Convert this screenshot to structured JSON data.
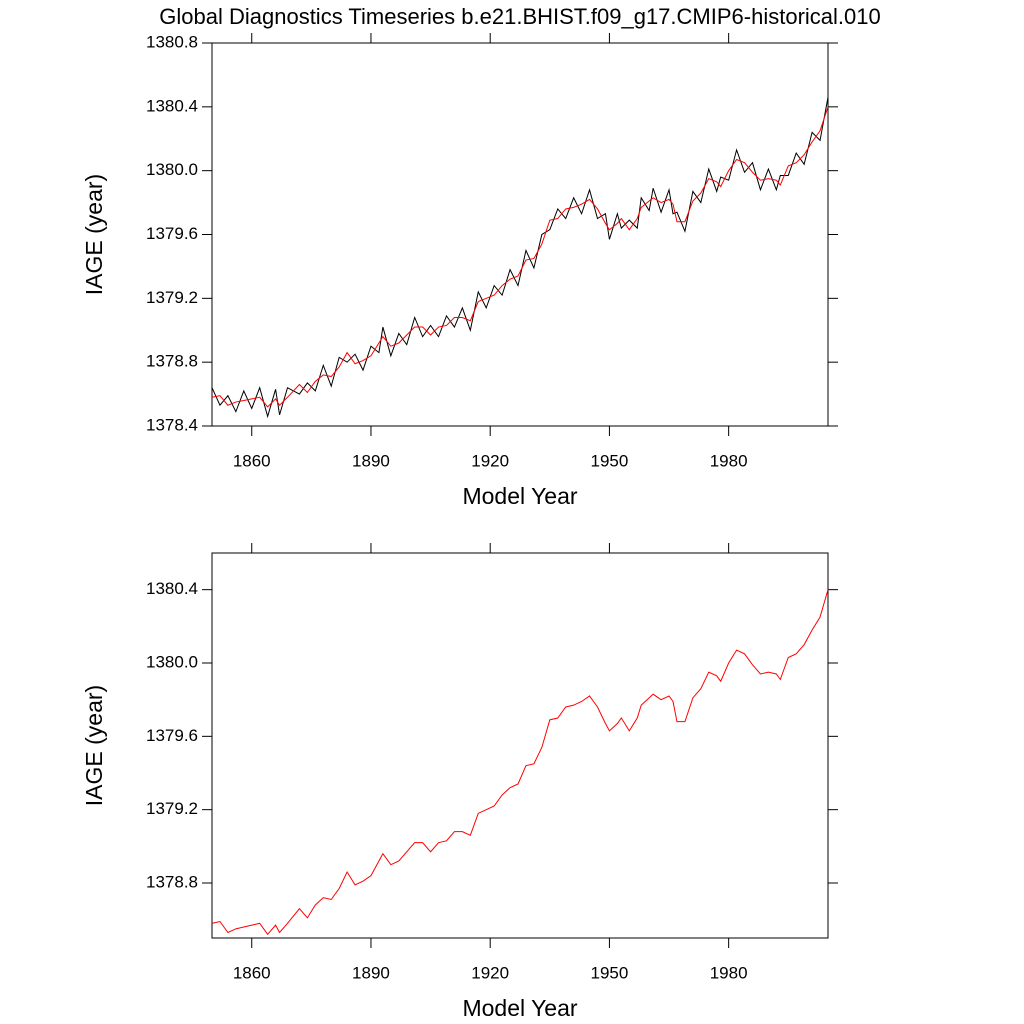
{
  "chart_data": [
    {
      "type": "line",
      "title": "Global Diagnostics Timeseries b.e21.BHIST.f09_g17.CMIP6-historical.010",
      "x_label": "Model Year",
      "y_label": "IAGE (year)",
      "xlim": [
        1850,
        2005
      ],
      "xticks": [
        1860,
        1890,
        1920,
        1950,
        1980
      ],
      "ylim": [
        1378.4,
        1380.8
      ],
      "yticks": [
        1378.4,
        1378.8,
        1379.2,
        1379.6,
        {
          "value": 1380,
          "label": "1380.0"
        },
        1380.4,
        1380.8
      ],
      "x": [
        1850,
        1852,
        1854,
        1856,
        1858,
        1860,
        1862,
        1864,
        1866,
        1867,
        1869,
        1872,
        1874,
        1876,
        1878,
        1880,
        1882,
        1884,
        1886,
        1888,
        1890,
        1892,
        1893,
        1895,
        1897,
        1899,
        1901,
        1903,
        1905,
        1907,
        1909,
        1911,
        1913,
        1915,
        1917,
        1919,
        1921,
        1923,
        1925,
        1927,
        1929,
        1931,
        1933,
        1935,
        1937,
        1939,
        1941,
        1943,
        1945,
        1947,
        1949,
        1950,
        1952,
        1953,
        1955,
        1957,
        1958,
        1960,
        1961,
        1963,
        1965,
        1966,
        1967,
        1969,
        1971,
        1973,
        1975,
        1977,
        1978,
        1980,
        1982,
        1984,
        1986,
        1988,
        1990,
        1992,
        1993,
        1995,
        1997,
        1999,
        2001,
        2003,
        2005
      ],
      "series": [
        {
          "color": "#000000",
          "values": [
            1378.64,
            1378.53,
            1378.59,
            1378.49,
            1378.62,
            1378.51,
            1378.64,
            1378.46,
            1378.63,
            1378.47,
            1378.64,
            1378.6,
            1378.67,
            1378.62,
            1378.78,
            1378.65,
            1378.83,
            1378.8,
            1378.85,
            1378.75,
            1378.9,
            1378.86,
            1379.02,
            1378.84,
            1378.98,
            1378.91,
            1379.08,
            1378.96,
            1379.03,
            1378.96,
            1379.09,
            1379.02,
            1379.14,
            1379.0,
            1379.24,
            1379.14,
            1379.28,
            1379.22,
            1379.38,
            1379.28,
            1379.5,
            1379.39,
            1379.6,
            1379.63,
            1379.76,
            1379.7,
            1379.83,
            1379.73,
            1379.88,
            1379.7,
            1379.73,
            1379.57,
            1379.73,
            1379.64,
            1379.69,
            1379.64,
            1379.83,
            1379.75,
            1379.89,
            1379.74,
            1379.88,
            1379.73,
            1379.74,
            1379.62,
            1379.87,
            1379.8,
            1380.01,
            1379.87,
            1379.96,
            1379.94,
            1380.13,
            1379.99,
            1380.05,
            1379.88,
            1380.01,
            1379.88,
            1379.97,
            1379.97,
            1380.11,
            1380.04,
            1380.24,
            1380.19,
            1380.46
          ]
        },
        {
          "color": "#ff0000",
          "values": [
            1378.58,
            1378.59,
            1378.53,
            1378.55,
            1378.56,
            1378.57,
            1378.58,
            1378.52,
            1378.57,
            1378.53,
            1378.58,
            1378.66,
            1378.61,
            1378.68,
            1378.72,
            1378.71,
            1378.77,
            1378.86,
            1378.79,
            1378.81,
            1378.84,
            1378.92,
            1378.96,
            1378.9,
            1378.92,
            1378.97,
            1379.02,
            1379.02,
            1378.97,
            1379.02,
            1379.03,
            1379.08,
            1379.08,
            1379.06,
            1379.18,
            1379.2,
            1379.22,
            1379.28,
            1379.32,
            1379.34,
            1379.44,
            1379.45,
            1379.54,
            1379.69,
            1379.7,
            1379.76,
            1379.77,
            1379.79,
            1379.82,
            1379.76,
            1379.67,
            1379.63,
            1379.67,
            1379.7,
            1379.63,
            1379.7,
            1379.77,
            1379.81,
            1379.83,
            1379.8,
            1379.82,
            1379.79,
            1379.68,
            1379.68,
            1379.81,
            1379.86,
            1379.95,
            1379.93,
            1379.9,
            1380.0,
            1380.07,
            1380.05,
            1379.99,
            1379.94,
            1379.95,
            1379.94,
            1379.91,
            1380.03,
            1380.05,
            1380.1,
            1380.18,
            1380.25,
            1380.4
          ]
        }
      ]
    },
    {
      "type": "line",
      "x_label": "Model Year",
      "y_label": "IAGE (year)",
      "xlim": [
        1850,
        2005
      ],
      "xticks": [
        1860,
        1890,
        1920,
        1950,
        1980
      ],
      "ylim": [
        1378.5,
        1380.6
      ],
      "yticks": [
        1378.8,
        1379.2,
        1379.6,
        {
          "value": 1380,
          "label": "1380.0"
        },
        1380.4
      ],
      "x": [
        1850,
        1852,
        1854,
        1856,
        1858,
        1860,
        1862,
        1864,
        1866,
        1867,
        1869,
        1872,
        1874,
        1876,
        1878,
        1880,
        1882,
        1884,
        1886,
        1888,
        1890,
        1892,
        1893,
        1895,
        1897,
        1899,
        1901,
        1903,
        1905,
        1907,
        1909,
        1911,
        1913,
        1915,
        1917,
        1919,
        1921,
        1923,
        1925,
        1927,
        1929,
        1931,
        1933,
        1935,
        1937,
        1939,
        1941,
        1943,
        1945,
        1947,
        1949,
        1950,
        1952,
        1953,
        1955,
        1957,
        1958,
        1960,
        1961,
        1963,
        1965,
        1966,
        1967,
        1969,
        1971,
        1973,
        1975,
        1977,
        1978,
        1980,
        1982,
        1984,
        1986,
        1988,
        1990,
        1992,
        1993,
        1995,
        1997,
        1999,
        2001,
        2003,
        2005
      ],
      "series": [
        {
          "color": "#ff0000",
          "values": [
            1378.58,
            1378.59,
            1378.53,
            1378.55,
            1378.56,
            1378.57,
            1378.58,
            1378.52,
            1378.57,
            1378.53,
            1378.58,
            1378.66,
            1378.61,
            1378.68,
            1378.72,
            1378.71,
            1378.77,
            1378.86,
            1378.79,
            1378.81,
            1378.84,
            1378.92,
            1378.96,
            1378.9,
            1378.92,
            1378.97,
            1379.02,
            1379.02,
            1378.97,
            1379.02,
            1379.03,
            1379.08,
            1379.08,
            1379.06,
            1379.18,
            1379.2,
            1379.22,
            1379.28,
            1379.32,
            1379.34,
            1379.44,
            1379.45,
            1379.54,
            1379.69,
            1379.7,
            1379.76,
            1379.77,
            1379.79,
            1379.82,
            1379.76,
            1379.67,
            1379.63,
            1379.67,
            1379.7,
            1379.63,
            1379.7,
            1379.77,
            1379.81,
            1379.83,
            1379.8,
            1379.82,
            1379.79,
            1379.68,
            1379.68,
            1379.81,
            1379.86,
            1379.95,
            1379.93,
            1379.9,
            1380.0,
            1380.07,
            1380.05,
            1379.99,
            1379.94,
            1379.95,
            1379.94,
            1379.91,
            1380.03,
            1380.05,
            1380.1,
            1380.18,
            1380.25,
            1380.4
          ]
        }
      ]
    }
  ]
}
